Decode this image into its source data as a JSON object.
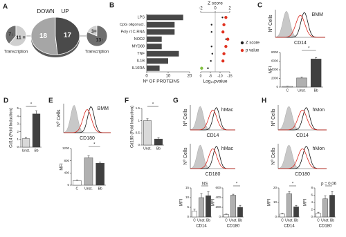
{
  "chart_data": [
    {
      "type": "pie",
      "panel": "A",
      "labels": [
        "DOWN",
        "UP"
      ],
      "values": [
        18,
        17
      ],
      "colors": [
        "#a6a6a6",
        "#4a4a4a"
      ]
    },
    {
      "type": "pie",
      "title": "Transcription",
      "values": [
        7,
        11
      ],
      "value_labels": [
        "7↓",
        "11 ="
      ],
      "colors": [
        "#6e6e6e",
        "#cfcfcf"
      ]
    },
    {
      "type": "pie",
      "title": "Transcription",
      "values": [
        3,
        13
      ],
      "value_labels": [
        "3=",
        "13↑"
      ],
      "colors": [
        "#cfcfcf",
        "#6e6e6e"
      ]
    },
    {
      "type": "hbar",
      "panel": "B",
      "categories": [
        "LPS",
        "CpG oligonucl.",
        "Poly rI:C-RNA",
        "NOD2",
        "MYD88",
        "TNF",
        "IL1B",
        "IL10RA"
      ],
      "values": [
        17,
        13,
        13,
        7,
        7,
        15,
        10,
        6
      ],
      "color": "#474747",
      "xlim": [
        0,
        20
      ],
      "xticks": [
        0,
        10,
        20
      ],
      "xlabel": "Nº OF PROTEINS"
    },
    {
      "type": "dot",
      "x2label": "Z score",
      "x2lim": [
        -2,
        2
      ],
      "x2ticks": [
        -2,
        0,
        2
      ],
      "xlabel": "Log₁₀pvalue",
      "xlim": [
        0,
        -15
      ],
      "xticks": [
        0,
        -5,
        -10,
        -15
      ],
      "series": [
        {
          "name": "Z score",
          "color": "#222222",
          "axis": "x2",
          "values": [
            1.0,
            -0.5,
            -0.5,
            1.5,
            -0.5,
            -0.4,
            -0.6,
            -1.0
          ]
        },
        {
          "name": "p value",
          "color": "#e0301e",
          "values": [
            -13,
            -12,
            -11.5,
            -14,
            -13,
            -12,
            -11.5,
            -0.5
          ],
          "point_colors": [
            "#e0301e",
            "#e0301e",
            "#e0301e",
            "#e0301e",
            "#e0301e",
            "#e0301e",
            "#e0301e",
            "#7fbf3f"
          ]
        }
      ]
    },
    {
      "type": "flow",
      "panel": "C",
      "title": "BMM",
      "ylabel": "Nº Cells",
      "xlabel": "CD14"
    },
    {
      "type": "bar",
      "ylabel": "MFI",
      "categories": [
        "C",
        "Unst.",
        "Bb"
      ],
      "values": [
        150,
        2100,
        6500
      ],
      "errors": [
        50,
        200,
        300
      ],
      "colors": [
        "#ffffff",
        "#b0b0b0",
        "#404040"
      ],
      "ylim": [
        0,
        8000
      ],
      "yticks": [
        0,
        2000,
        4000,
        6000,
        8000
      ],
      "annotation": "*"
    },
    {
      "type": "bar",
      "panel": "D",
      "ylabel": "Cd14 (Fold Induction)",
      "categories": [
        "Unst.",
        "Bb"
      ],
      "values": [
        1.1,
        4.3
      ],
      "errors": [
        0.2,
        0.4
      ],
      "colors": [
        "#d9d9d9",
        "#404040"
      ],
      "ylim": [
        0,
        5
      ],
      "yticks": [
        0,
        1,
        2,
        3,
        4,
        5
      ],
      "annotation": "*"
    },
    {
      "type": "flow",
      "panel": "E",
      "title": "BMM",
      "ylabel": "Nº Cells",
      "xlabel": "CD180"
    },
    {
      "type": "bar",
      "ylabel": "MFI",
      "categories": [
        "C",
        "Unst.",
        "Bb"
      ],
      "values": [
        150,
        900,
        720
      ],
      "errors": [
        20,
        60,
        40
      ],
      "colors": [
        "#ffffff",
        "#b0b0b0",
        "#404040"
      ],
      "ylim": [
        0,
        1200
      ],
      "yticks": [
        0,
        400,
        800,
        1200
      ],
      "annotation": "*"
    },
    {
      "type": "bar",
      "panel": "F",
      "ylabel": "Cd180 (Fold Induction)",
      "categories": [
        "Unst.",
        "Bb"
      ],
      "values": [
        1.0,
        0.25
      ],
      "errors": [
        0.08,
        0.05
      ],
      "colors": [
        "#d9d9d9",
        "#404040"
      ],
      "ylim": [
        0,
        1.5
      ],
      "yticks": [
        0,
        0.5,
        1,
        1.5
      ],
      "annotation": "*"
    },
    {
      "type": "flow",
      "panel": "G",
      "title": "hMac",
      "ylabel": "Nº Cells",
      "xlabel": "CD14"
    },
    {
      "type": "flow",
      "title": "hMac",
      "ylabel": "Nº Cells",
      "xlabel": "CD180"
    },
    {
      "type": "bar",
      "ylabel": "MFI",
      "xlabel": "CD14",
      "categories": [
        "C",
        "Unst.",
        "Bb"
      ],
      "values": [
        3,
        10,
        11
      ],
      "errors": [
        1,
        2,
        2
      ],
      "colors": [
        "#ffffff",
        "#b0b0b0",
        "#404040"
      ],
      "ylim": [
        0,
        15
      ],
      "yticks": [
        0,
        5,
        10,
        15
      ],
      "annotation": "NS"
    },
    {
      "type": "bar",
      "ylabel": "MFI",
      "xlabel": "CD180",
      "categories": [
        "C",
        "Unst.",
        "Bb"
      ],
      "values": [
        50,
        450,
        200
      ],
      "errors": [
        10,
        20,
        40
      ],
      "colors": [
        "#ffffff",
        "#b0b0b0",
        "#404040"
      ],
      "ylim": [
        0,
        600
      ],
      "yticks": [
        0,
        200,
        400,
        600
      ],
      "annotation": "*"
    },
    {
      "type": "flow",
      "panel": "H",
      "title": "hMon",
      "ylabel": "Nº Cells",
      "xlabel": "CD14"
    },
    {
      "type": "flow",
      "title": "hMon",
      "ylabel": "Nº Cells",
      "xlabel": "CD180"
    },
    {
      "type": "bar",
      "ylabel": "MFI",
      "xlabel": "CD14",
      "categories": [
        "C",
        "Unst.",
        "Bb"
      ],
      "values": [
        2,
        16,
        7
      ],
      "errors": [
        0.5,
        1.5,
        1
      ],
      "colors": [
        "#ffffff",
        "#b0b0b0",
        "#404040"
      ],
      "ylim": [
        0,
        20
      ],
      "yticks": [
        0,
        10,
        20
      ],
      "annotation": "*"
    },
    {
      "type": "bar",
      "ylabel": "MFI",
      "xlabel": "CD180",
      "categories": [
        "C",
        "Unst.",
        "Bb"
      ],
      "values": [
        1,
        5,
        6
      ],
      "errors": [
        0.3,
        0.8,
        1
      ],
      "colors": [
        "#ffffff",
        "#b0b0b0",
        "#404040"
      ],
      "ylim": [
        0,
        8
      ],
      "yticks": [
        0,
        2,
        4,
        6,
        8
      ],
      "annotation": "p = 0.06"
    }
  ]
}
